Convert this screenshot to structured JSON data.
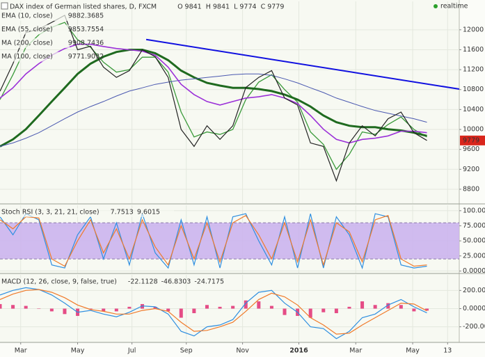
{
  "chart_data": [
    {
      "type": "line",
      "title": "DAX index of German listed shares, D, FXCM",
      "status": "realtime",
      "quote": [
        {
          "label": "O",
          "value": 9841
        },
        {
          "label": "H",
          "value": 9841
        },
        {
          "label": "L",
          "value": 9774
        },
        {
          "label": "C",
          "value": 9779
        }
      ],
      "x": [
        0,
        2,
        4,
        6,
        8,
        10,
        12,
        14,
        16,
        18,
        20,
        22,
        24,
        26,
        28,
        30,
        32,
        34,
        36,
        38,
        40,
        42,
        44,
        46,
        48,
        50,
        52,
        54,
        56,
        58,
        60,
        62,
        64,
        66
      ],
      "xlim": [
        0,
        71
      ],
      "xticks": [
        {
          "value": 3.2,
          "label": "Mar"
        },
        {
          "value": 12,
          "label": "May"
        },
        {
          "value": 20.4,
          "label": "Jul"
        },
        {
          "value": 28.8,
          "label": "Sep"
        },
        {
          "value": 37.5,
          "label": "Nov"
        },
        {
          "value": 46.2,
          "label": "2016"
        },
        {
          "value": 55,
          "label": "Mar"
        },
        {
          "value": 63.8,
          "label": "May"
        },
        {
          "value": 69.2,
          "label": "13"
        }
      ],
      "ylim": [
        8520,
        12570
      ],
      "yticks": [
        8800,
        9200,
        9600,
        10000,
        10400,
        10800,
        11200,
        11600,
        12000
      ],
      "grid": true,
      "color": "#222222",
      "values": [
        10767,
        11320,
        11945,
        12014,
        12150,
        12290,
        11600,
        11670,
        11250,
        11045,
        11180,
        11600,
        11460,
        11045,
        10000,
        9660,
        10075,
        9800,
        10075,
        10840,
        11045,
        11180,
        10630,
        10490,
        9730,
        9660,
        8970,
        9730,
        10075,
        9870,
        10215,
        10350,
        9935,
        9779
      ],
      "series": [
        {
          "name": "EMA (10, close)",
          "last": 9882.3685,
          "color": "#3a9a3a",
          "width": 1.3,
          "values": [
            10600,
            11100,
            11650,
            11900,
            12050,
            12150,
            11800,
            11650,
            11350,
            11150,
            11200,
            11450,
            11450,
            11150,
            10350,
            9850,
            9950,
            9900,
            10000,
            10600,
            10950,
            11100,
            10800,
            10550,
            9950,
            9700,
            9200,
            9500,
            9950,
            9900,
            10100,
            10250,
            10000,
            9850
          ]
        },
        {
          "name": "EMA (55, close)",
          "last": 9853.7554,
          "color": "#1f6a1f",
          "width": 3,
          "values": [
            9660,
            9800,
            10005,
            10280,
            10560,
            10835,
            11115,
            11320,
            11460,
            11555,
            11600,
            11600,
            11530,
            11390,
            11180,
            11045,
            10935,
            10880,
            10835,
            10835,
            10810,
            10770,
            10700,
            10600,
            10460,
            10280,
            10145,
            10075,
            10045,
            10045,
            10005,
            9980,
            9935,
            9870
          ]
        },
        {
          "name": "MA (200, close)",
          "last": 9908.7436,
          "color": "#4a58b0",
          "width": 1,
          "values": [
            9660,
            9730,
            9825,
            9935,
            10075,
            10215,
            10350,
            10460,
            10560,
            10670,
            10770,
            10835,
            10905,
            10950,
            10990,
            11015,
            11045,
            11070,
            11100,
            11115,
            11115,
            11085,
            11015,
            10935,
            10835,
            10740,
            10630,
            10545,
            10460,
            10380,
            10325,
            10270,
            10215,
            10145
          ]
        },
        {
          "name": "MA (100, close)",
          "last": 9771.9032,
          "color": "#9b30d8",
          "width": 1.6,
          "values": [
            10630,
            10835,
            11115,
            11320,
            11490,
            11625,
            11710,
            11710,
            11665,
            11625,
            11600,
            11570,
            11490,
            11250,
            10905,
            10700,
            10560,
            10490,
            10560,
            10630,
            10655,
            10700,
            10630,
            10520,
            10280,
            10005,
            9800,
            9730,
            9800,
            9825,
            9870,
            9965,
            9965,
            9935
          ]
        }
      ],
      "trendline": {
        "x": [
          22.6,
          71
        ],
        "values": [
          11805,
          10810
        ],
        "color": "#1010e0"
      }
    },
    {
      "type": "line",
      "title": "Stoch RSI (3, 3, 21, 21, close)",
      "x": [
        0,
        2,
        4,
        6,
        8,
        10,
        12,
        14,
        16,
        18,
        20,
        22,
        24,
        26,
        28,
        30,
        32,
        34,
        36,
        38,
        40,
        42,
        44,
        46,
        48,
        50,
        52,
        54,
        56,
        58,
        60,
        62,
        64,
        66
      ],
      "xlim": [
        0,
        71
      ],
      "ylim": [
        -3,
        109
      ],
      "yticks": [
        {
          "value": 0,
          "label": "0.0000"
        },
        {
          "value": 25,
          "label": "25.0000"
        },
        {
          "value": 50,
          "label": "50.0000"
        },
        {
          "value": 75,
          "label": "75.0000"
        },
        {
          "value": 100,
          "label": "100.0000"
        }
      ],
      "band": [
        20,
        80
      ],
      "band_color": "#c9b0ee",
      "series": [
        {
          "last": 7.7513,
          "color": "#2f8fe0",
          "width": 1.2,
          "values": [
            90,
            60,
            95,
            85,
            10,
            5,
            60,
            90,
            20,
            80,
            10,
            95,
            30,
            5,
            85,
            10,
            90,
            5,
            90,
            95,
            50,
            10,
            90,
            5,
            95,
            5,
            90,
            60,
            5,
            95,
            90,
            10,
            5,
            8
          ]
        },
        {
          "last": 9.6015,
          "color": "#f07a2a",
          "width": 1.2,
          "values": [
            85,
            70,
            90,
            88,
            20,
            8,
            50,
            85,
            30,
            70,
            20,
            85,
            40,
            10,
            75,
            20,
            80,
            15,
            80,
            92,
            60,
            20,
            80,
            15,
            85,
            10,
            80,
            65,
            15,
            85,
            92,
            20,
            8,
            10
          ]
        }
      ]
    },
    {
      "type": "line",
      "title": "MACD (12, 26, close, 9, false, true)",
      "x": [
        0,
        2,
        4,
        6,
        8,
        10,
        12,
        14,
        16,
        18,
        20,
        22,
        24,
        26,
        28,
        30,
        32,
        34,
        36,
        38,
        40,
        42,
        44,
        46,
        48,
        50,
        52,
        54,
        56,
        58,
        60,
        62,
        64,
        66
      ],
      "xlim": [
        0,
        71
      ],
      "ylim": [
        -356,
        371
      ],
      "yticks": [
        {
          "value": -200,
          "label": "-200.0000"
        },
        {
          "value": 0,
          "label": "0.0000"
        },
        {
          "value": 200,
          "label": "200.0000"
        }
      ],
      "series": [
        {
          "last": -22.1128,
          "color": "#e0206a",
          "style": "bar",
          "values": [
            50,
            40,
            30,
            0,
            -30,
            -60,
            -80,
            -10,
            -30,
            -30,
            20,
            50,
            20,
            -30,
            -100,
            -50,
            40,
            20,
            30,
            90,
            80,
            30,
            -70,
            -80,
            -100,
            -40,
            -50,
            20,
            80,
            40,
            60,
            40,
            -30,
            -22
          ]
        },
        {
          "last": -46.8303,
          "color": "#2f8fe0",
          "width": 1.2,
          "values": [
            150,
            200,
            230,
            210,
            150,
            60,
            -40,
            -20,
            -60,
            -90,
            -40,
            30,
            20,
            -60,
            -250,
            -300,
            -200,
            -180,
            -120,
            60,
            180,
            200,
            60,
            -40,
            -200,
            -220,
            -330,
            -250,
            -100,
            -60,
            40,
            100,
            20,
            -47
          ]
        },
        {
          "last": -24.7175,
          "color": "#f07a2a",
          "width": 1.2,
          "values": [
            100,
            160,
            200,
            210,
            180,
            120,
            40,
            -10,
            -30,
            -60,
            -60,
            -20,
            0,
            -30,
            -150,
            -250,
            -240,
            -200,
            -150,
            -30,
            100,
            170,
            130,
            40,
            -100,
            -180,
            -280,
            -270,
            -180,
            -100,
            -20,
            60,
            50,
            -25
          ]
        }
      ]
    }
  ]
}
